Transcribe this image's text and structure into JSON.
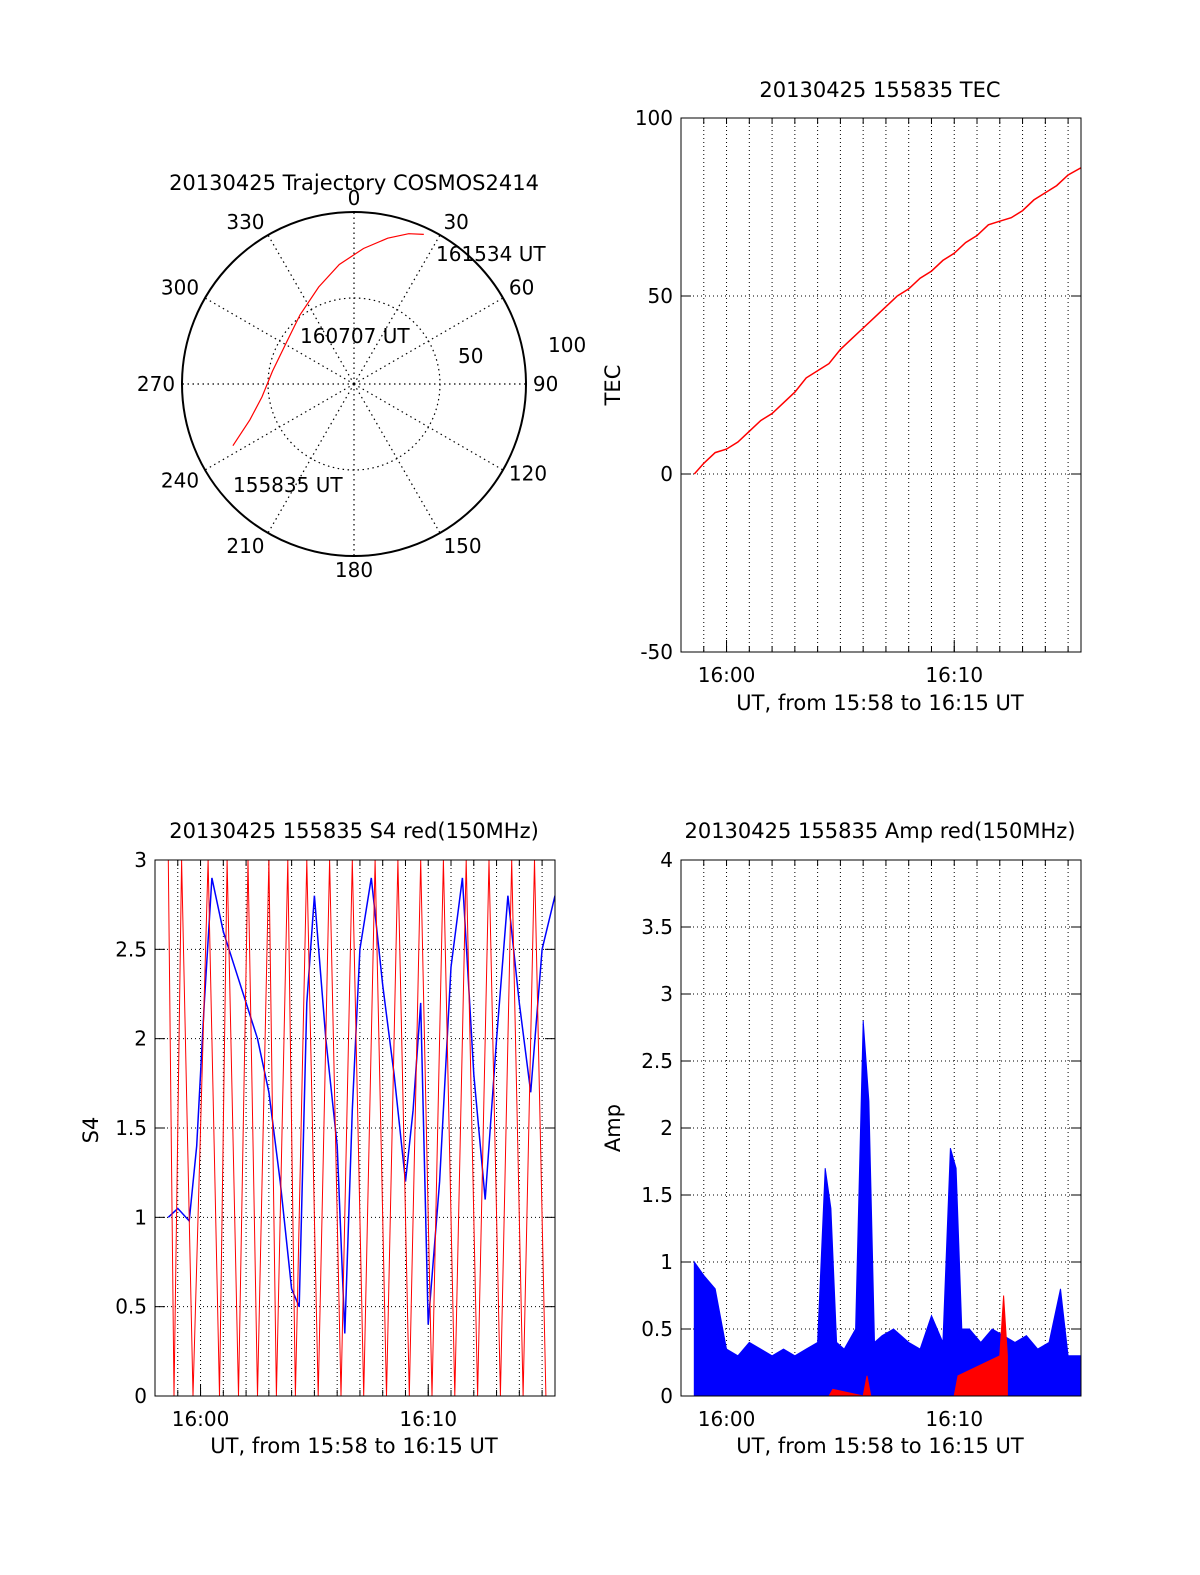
{
  "chart_data": [
    {
      "type": "polar",
      "title": "20130425 Trajectory COSMOS2414",
      "azimuth_labels": [
        "0",
        "30",
        "60",
        "90",
        "120",
        "150",
        "180",
        "210",
        "240",
        "270",
        "300",
        "330"
      ],
      "radius_labels": [
        "50",
        "100"
      ],
      "rlim": [
        0,
        100
      ],
      "series": [
        {
          "color": "#ff0000",
          "points": [
            {
              "az": 243,
              "r": 79
            },
            {
              "az": 251,
              "r": 64
            },
            {
              "az": 262,
              "r": 54
            },
            {
              "az": 279,
              "r": 48
            },
            {
              "az": 300,
              "r": 46
            },
            {
              "az": 322,
              "r": 51
            },
            {
              "az": 340,
              "r": 60
            },
            {
              "az": 353,
              "r": 70
            },
            {
              "az": 4,
              "r": 79
            },
            {
              "az": 13,
              "r": 87
            },
            {
              "az": 20,
              "r": 93
            },
            {
              "az": 25,
              "r": 96
            }
          ]
        }
      ],
      "annotations": [
        "161534 UT",
        "160707 UT",
        "155835 UT"
      ],
      "grid": true
    },
    {
      "type": "line",
      "title": "20130425 155835 TEC",
      "xlabel": "UT, from 15:58 to 16:15 UT",
      "ylabel": "TEC",
      "xlim": [
        "15:58:00",
        "16:15:34"
      ],
      "ylim": [
        -50,
        100
      ],
      "x_ticks": [
        "16:00",
        "16:10"
      ],
      "y_ticks": [
        "-50",
        "0",
        "50",
        "100"
      ],
      "grid": true,
      "series": [
        {
          "color": "#ff0000",
          "x": [
            "15:58:35",
            "15:59:00",
            "15:59:30",
            "16:00:00",
            "16:00:30",
            "16:01:00",
            "16:01:30",
            "16:02:00",
            "16:02:30",
            "16:03:00",
            "16:03:30",
            "16:04:00",
            "16:04:30",
            "16:05:00",
            "16:05:30",
            "16:06:00",
            "16:06:30",
            "16:07:00",
            "16:07:30",
            "16:08:00",
            "16:08:30",
            "16:09:00",
            "16:09:30",
            "16:10:00",
            "16:10:30",
            "16:11:00",
            "16:11:30",
            "16:12:00",
            "16:12:30",
            "16:13:00",
            "16:13:30",
            "16:14:00",
            "16:14:30",
            "16:15:00",
            "16:15:34"
          ],
          "values": [
            0,
            3,
            6,
            7,
            9,
            12,
            15,
            17,
            20,
            23,
            27,
            29,
            31,
            35,
            38,
            41,
            44,
            47,
            50,
            52,
            55,
            57,
            60,
            62,
            65,
            67,
            70,
            71,
            72,
            74,
            77,
            79,
            81,
            84,
            86
          ]
        }
      ]
    },
    {
      "type": "line",
      "title": "20130425 155835 S4 red(150MHz)",
      "xlabel": "UT, from 15:58 to 16:15 UT",
      "ylabel": "S4",
      "xlim": [
        "15:58:00",
        "16:15:34"
      ],
      "ylim": [
        0,
        3
      ],
      "x_ticks": [
        "16:00",
        "16:10"
      ],
      "y_ticks": [
        "0",
        "0.5",
        "1",
        "1.5",
        "2",
        "2.5",
        "3"
      ],
      "grid": true,
      "series": [
        {
          "color": "#0000ff",
          "x": [
            "15:58:35",
            "15:59:00",
            "15:59:30",
            "15:59:50",
            "16:00:10",
            "16:00:30",
            "16:01:00",
            "16:01:30",
            "16:02:00",
            "16:02:30",
            "16:03:00",
            "16:03:30",
            "16:04:00",
            "16:04:20",
            "16:04:40",
            "16:05:00",
            "16:05:30",
            "16:06:00",
            "16:06:20",
            "16:06:40",
            "16:07:00",
            "16:07:30",
            "16:08:00",
            "16:08:30",
            "16:09:00",
            "16:09:20",
            "16:09:40",
            "16:10:00",
            "16:10:30",
            "16:11:00",
            "16:11:30",
            "16:12:00",
            "16:12:30",
            "16:13:00",
            "16:13:30",
            "16:14:00",
            "16:14:30",
            "16:15:00",
            "16:15:34"
          ],
          "values": [
            1.0,
            1.05,
            0.98,
            1.4,
            2.2,
            2.9,
            2.6,
            2.4,
            2.2,
            2.0,
            1.7,
            1.2,
            0.6,
            0.5,
            2.2,
            2.8,
            2.0,
            1.4,
            0.35,
            1.6,
            2.5,
            2.9,
            2.3,
            1.8,
            1.2,
            1.6,
            2.2,
            0.4,
            1.2,
            2.4,
            2.9,
            1.8,
            1.1,
            2.0,
            2.8,
            2.2,
            1.7,
            2.5,
            2.8
          ]
        },
        {
          "color": "#ff0000",
          "x": [
            "15:58:35",
            "15:58:50",
            "15:59:10",
            "15:59:40",
            "16:00:20",
            "16:00:50",
            "16:01:10",
            "16:01:40",
            "16:02:05",
            "16:02:30",
            "16:03:00",
            "16:03:20",
            "16:03:50",
            "16:04:10",
            "16:04:40",
            "16:05:10",
            "16:05:40",
            "16:06:10",
            "16:06:40",
            "16:07:10",
            "16:07:40",
            "16:08:10",
            "16:08:40",
            "16:09:10",
            "16:09:40",
            "16:10:10",
            "16:10:40",
            "16:11:10",
            "16:11:40",
            "16:12:10",
            "16:12:40",
            "16:13:10",
            "16:13:40",
            "16:14:10",
            "16:14:40",
            "16:15:10"
          ],
          "values": [
            3.0,
            0,
            3.0,
            0,
            3.0,
            0,
            3.0,
            0,
            3.0,
            0,
            3.0,
            0,
            3.0,
            0,
            3.0,
            0,
            3.0,
            0,
            3.0,
            0,
            3.0,
            0,
            3.0,
            0,
            3.0,
            0,
            3.0,
            0,
            3.0,
            0,
            3.0,
            0,
            3.0,
            0,
            3.0,
            0
          ]
        }
      ]
    },
    {
      "type": "line",
      "title": "20130425 155835 Amp red(150MHz)",
      "xlabel": "UT, from 15:58 to 16:15 UT",
      "ylabel": "Amp",
      "xlim": [
        "15:58:00",
        "16:15:34"
      ],
      "ylim": [
        0,
        4
      ],
      "x_ticks": [
        "16:00",
        "16:10"
      ],
      "y_ticks": [
        "0",
        "0.5",
        "1",
        "1.5",
        "2",
        "2.5",
        "3",
        "3.5",
        "4"
      ],
      "grid": true,
      "series": [
        {
          "color": "#0000ff",
          "x": [
            "15:58:35",
            "15:59:00",
            "15:59:30",
            "16:00:00",
            "16:00:30",
            "16:01:00",
            "16:01:30",
            "16:02:00",
            "16:02:30",
            "16:03:00",
            "16:03:30",
            "16:04:00",
            "16:04:20",
            "16:04:35",
            "16:04:50",
            "16:05:10",
            "16:05:40",
            "16:06:00",
            "16:06:15",
            "16:06:30",
            "16:06:50",
            "16:07:20",
            "16:08:00",
            "16:08:30",
            "16:09:00",
            "16:09:30",
            "16:09:50",
            "16:10:05",
            "16:10:20",
            "16:10:40",
            "16:11:10",
            "16:11:40",
            "16:12:10",
            "16:12:40",
            "16:13:10",
            "16:13:40",
            "16:14:10",
            "16:14:40",
            "16:15:00",
            "16:15:34"
          ],
          "values": [
            1.0,
            0.9,
            0.8,
            0.35,
            0.3,
            0.4,
            0.35,
            0.3,
            0.35,
            0.3,
            0.35,
            0.4,
            1.7,
            1.4,
            0.4,
            0.35,
            0.5,
            2.8,
            2.2,
            0.4,
            0.45,
            0.5,
            0.4,
            0.35,
            0.6,
            0.4,
            1.85,
            1.7,
            0.5,
            0.5,
            0.4,
            0.5,
            0.45,
            0.4,
            0.45,
            0.35,
            0.4,
            0.8,
            0.3,
            0.3
          ]
        },
        {
          "color": "#ff0000",
          "x": [
            "16:04:30",
            "16:04:40",
            "16:06:00",
            "16:06:10",
            "16:06:20",
            "16:10:00",
            "16:10:10",
            "16:12:00",
            "16:12:10",
            "16:12:20"
          ],
          "values": [
            0,
            0.05,
            0,
            0.15,
            0,
            0,
            0.15,
            0.3,
            0.75,
            0.3
          ]
        }
      ]
    }
  ]
}
